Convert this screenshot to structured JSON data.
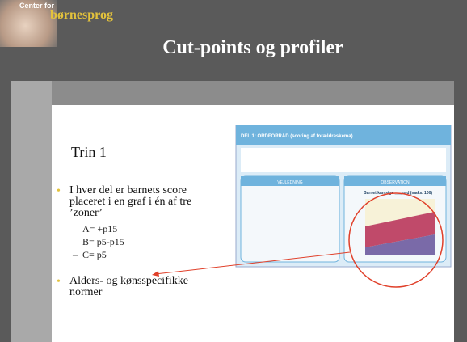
{
  "header": {
    "logo_line1": "Center for",
    "logo_line2": "børnesprog",
    "title": "Cut-points og profiler"
  },
  "body": {
    "heading": "Trin 1",
    "bullets": [
      {
        "text": "I hver del er barnets score placeret i en graf i én af tre ’zoner’",
        "sub": [
          "A= +p15",
          "B= p5-p15",
          "C= p5"
        ]
      },
      {
        "text": "Alders- og kønsspecifikke normer"
      }
    ]
  },
  "figure": {
    "title": "DEL 1: ORDFORRÅD (scoring af forældreskema)",
    "left_heading": "VEJLEDNING",
    "right_heading": "OBSERVATION",
    "chart_label": "Barnet kan sige ___ ord (maks. 100)"
  }
}
